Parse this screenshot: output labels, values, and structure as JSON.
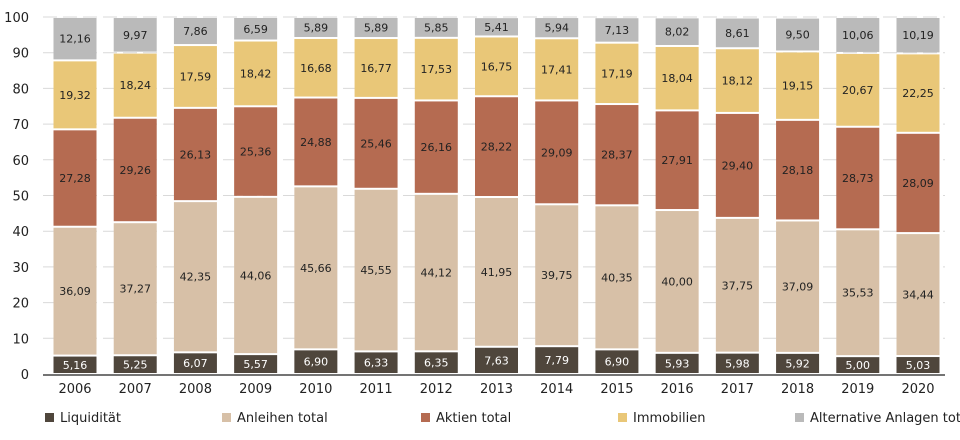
{
  "chart_data": {
    "type": "bar",
    "stacked": true,
    "title": "",
    "xlabel": "",
    "ylabel": "",
    "ylim": [
      0,
      100
    ],
    "yticks": [
      0,
      10,
      20,
      30,
      40,
      50,
      60,
      70,
      80,
      90,
      100
    ],
    "grid": "horizontal dashed",
    "legend_position": "bottom",
    "decimal_separator": ",",
    "categories": [
      "2006",
      "2007",
      "2008",
      "2009",
      "2010",
      "2011",
      "2012",
      "2013",
      "2014",
      "2015",
      "2016",
      "2017",
      "2018",
      "2019",
      "2020"
    ],
    "series": [
      {
        "name": "Liquidität",
        "color": "#4f463c",
        "label_color": "#ffffff",
        "values": [
          5.16,
          5.25,
          6.07,
          5.57,
          6.9,
          6.33,
          6.35,
          7.63,
          7.79,
          6.9,
          5.93,
          5.98,
          5.92,
          5.0,
          5.03
        ]
      },
      {
        "name": "Anleihen total",
        "color": "#d7c0a7",
        "label_color": "#222222",
        "values": [
          36.09,
          37.27,
          42.35,
          44.06,
          45.66,
          45.55,
          44.12,
          41.95,
          39.75,
          40.35,
          40.0,
          37.75,
          37.09,
          35.53,
          34.44
        ]
      },
      {
        "name": "Aktien total",
        "color": "#b56b51",
        "label_color": "#222222",
        "values": [
          27.28,
          29.26,
          26.13,
          25.36,
          24.88,
          25.46,
          26.16,
          28.22,
          29.09,
          28.37,
          27.91,
          29.4,
          28.18,
          28.73,
          28.09
        ]
      },
      {
        "name": "Immobilien",
        "color": "#e9c778",
        "label_color": "#222222",
        "values": [
          19.32,
          18.24,
          17.59,
          18.42,
          16.68,
          16.77,
          17.53,
          16.75,
          17.41,
          17.19,
          18.04,
          18.12,
          19.15,
          20.67,
          22.25
        ]
      },
      {
        "name": "Alternative Anlagen total",
        "color": "#bababa",
        "label_color": "#222222",
        "values": [
          12.16,
          9.97,
          7.86,
          6.59,
          5.89,
          5.89,
          5.85,
          5.41,
          5.94,
          7.13,
          8.02,
          8.61,
          9.5,
          10.06,
          10.19
        ]
      }
    ]
  }
}
